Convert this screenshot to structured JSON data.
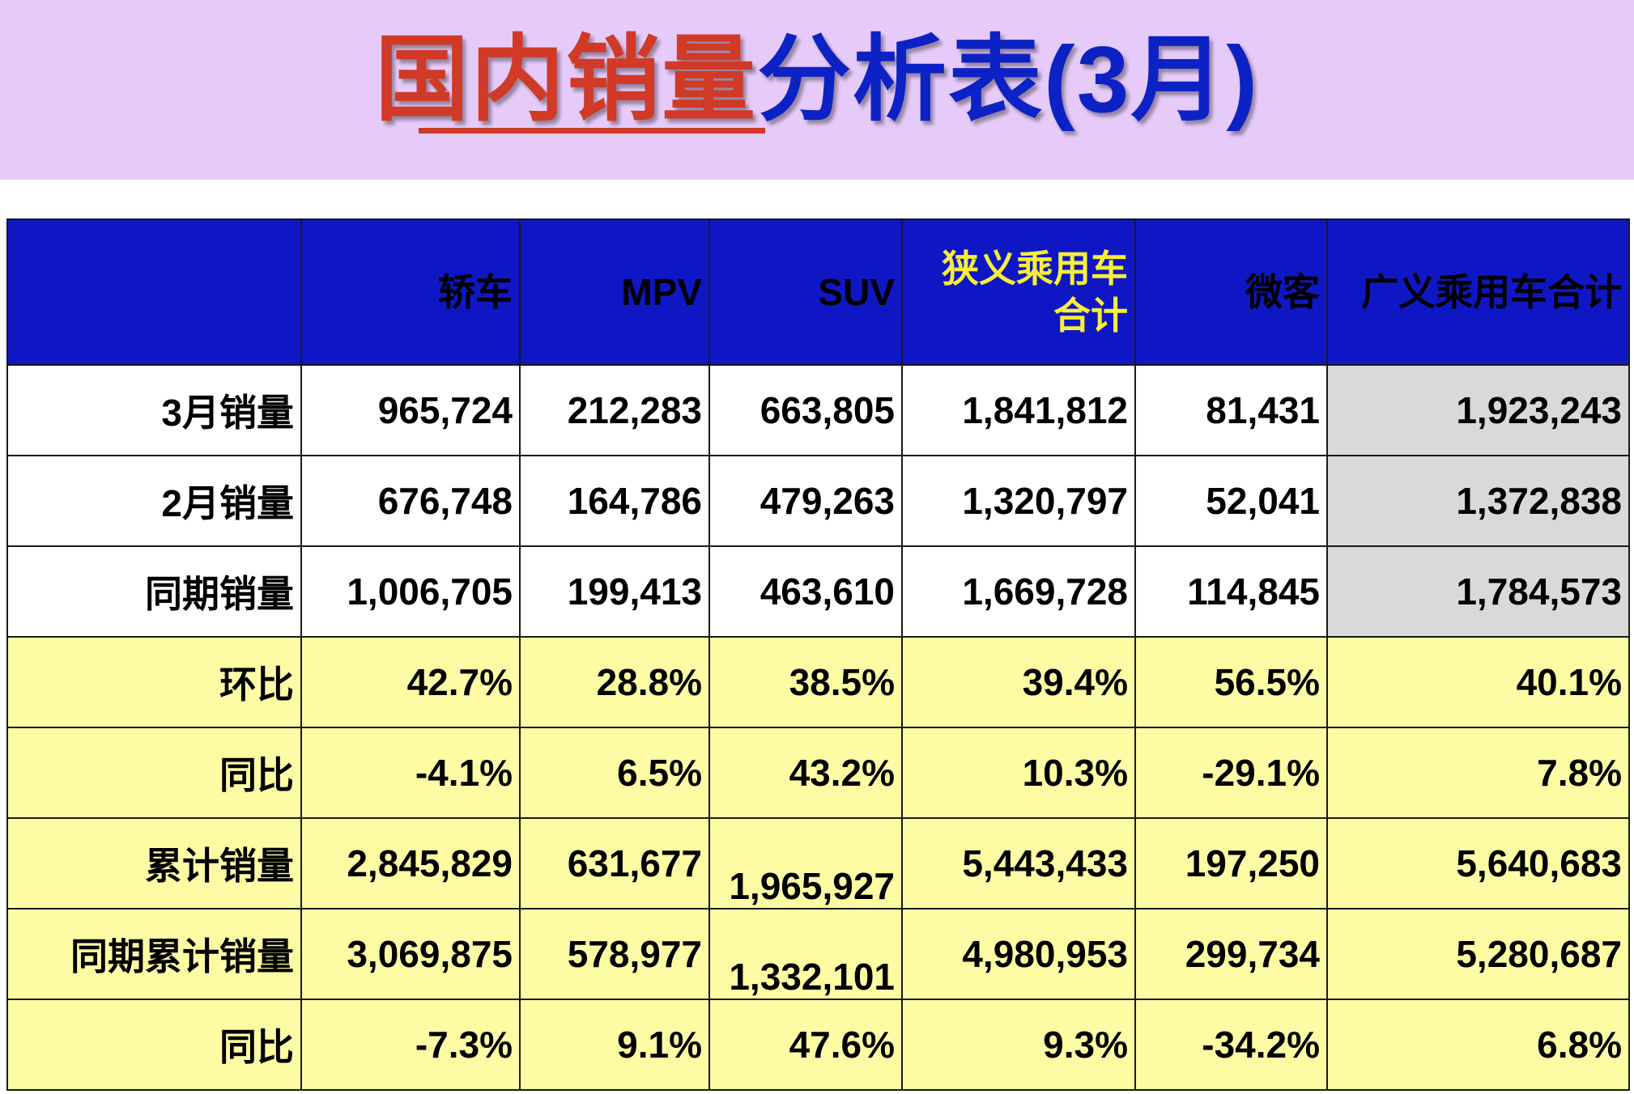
{
  "title": {
    "part_red": "国内销量",
    "part_blue": "分析表(3月)"
  },
  "colors": {
    "title_band": "#e6cbfa",
    "header_bg": "#0f17c4",
    "header_highlight": "#f6ee3a",
    "positive": "#27a51a",
    "negative": "#ef1a12",
    "label_blue": "#1432d8",
    "row_yellow": "#fdfca4",
    "total_gray": "#d9d9d9"
  },
  "table": {
    "headers": [
      "",
      "轿车",
      "MPV",
      "SUV",
      "狭义乘用车\n合计",
      "微客",
      "广义乘用车合计"
    ],
    "header_line1": "狭义乘用车",
    "header_line2": "合计",
    "rows": [
      {
        "label_num": "3",
        "label": "月销量",
        "values": [
          "965,724",
          "212,283",
          "663,805",
          "1,841,812",
          "81,431",
          "1,923,243"
        ]
      },
      {
        "label_num": "2",
        "label": "月销量",
        "values": [
          "676,748",
          "164,786",
          "479,263",
          "1,320,797",
          "52,041",
          "1,372,838"
        ]
      },
      {
        "label": "同期销量",
        "values": [
          "1,006,705",
          "199,413",
          "463,610",
          "1,669,728",
          "114,845",
          "1,784,573"
        ]
      },
      {
        "label": "环比",
        "values": [
          "42.7%",
          "28.8%",
          "38.5%",
          "39.4%",
          "56.5%",
          "40.1%"
        ]
      },
      {
        "label": "同比",
        "values": [
          "-4.1%",
          "6.5%",
          "43.2%",
          "10.3%",
          "-29.1%",
          "7.8%"
        ]
      },
      {
        "label": "累计销量",
        "values": [
          "2,845,829",
          "631,677",
          "1,965,927",
          "5,443,433",
          "197,250",
          "5,640,683"
        ]
      },
      {
        "label": "同期累计销量",
        "values": [
          "3,069,875",
          "578,977",
          "1,332,101",
          "4,980,953",
          "299,734",
          "5,280,687"
        ]
      },
      {
        "label": "同比",
        "values": [
          "-7.3%",
          "9.1%",
          "47.6%",
          "9.3%",
          "-34.2%",
          "6.8%"
        ]
      }
    ]
  }
}
